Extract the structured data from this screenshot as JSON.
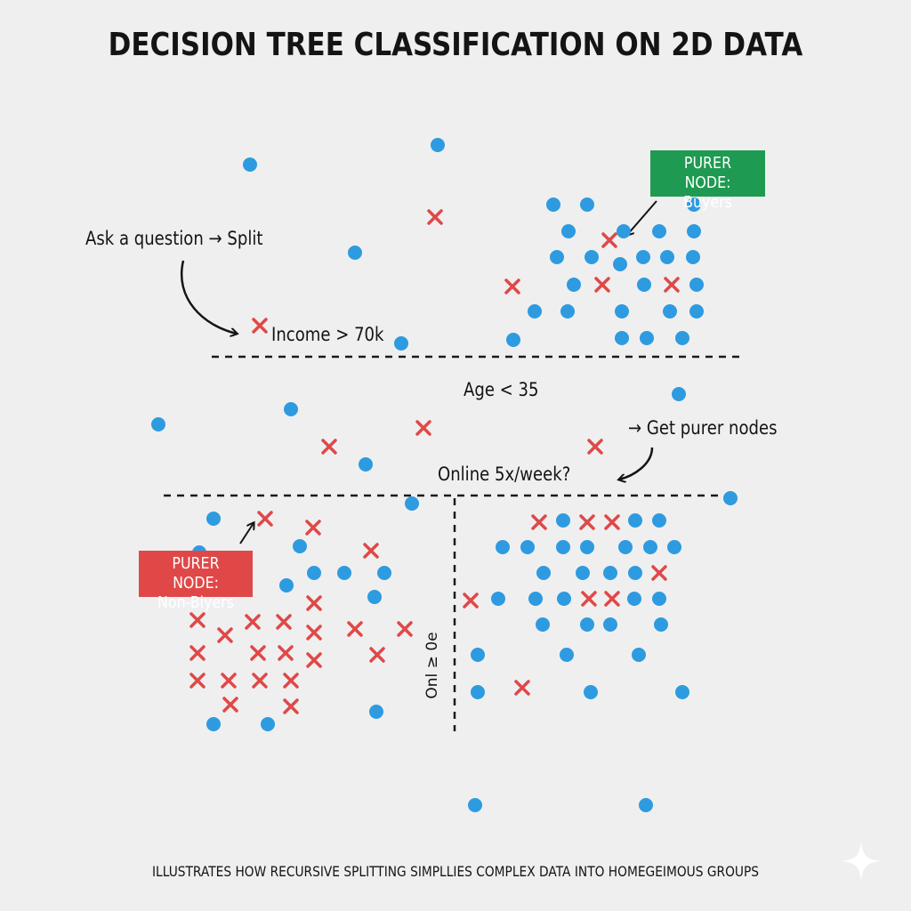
{
  "title": "DECISION TREE CLASSIFICATION ON 2D DATA",
  "caption": "ILLUSTRATES HOW RECURSIVE SPLITTING SIMPLLIES COMPLEX DATA INTO HOMEGEIMOUS GROUPS",
  "annotations": {
    "ask_question": "Ask a question → Split",
    "income": "Income > 70k",
    "age": "Age < 35",
    "get_purer": "→ Get purer nodes",
    "online": "Online 5x/week?",
    "vertical_split": "Onl ≥ 0e"
  },
  "badges": {
    "buyers": {
      "line1": "PURER NODE:",
      "line2": "Buyers"
    },
    "non_buyers": {
      "line1": "PURER NODE:",
      "line2": "Non-Biyers"
    }
  },
  "colors": {
    "blue_point": "#2e9be0",
    "red_cross": "#e04848",
    "buyers_badge": "#1f9a52",
    "non_buyers_badge": "#e04848",
    "split_line": "#1a1a1a"
  },
  "point_classes": [
    "blue-circle",
    "red-cross"
  ],
  "icons": {
    "sparkle": "sparkle-icon"
  }
}
